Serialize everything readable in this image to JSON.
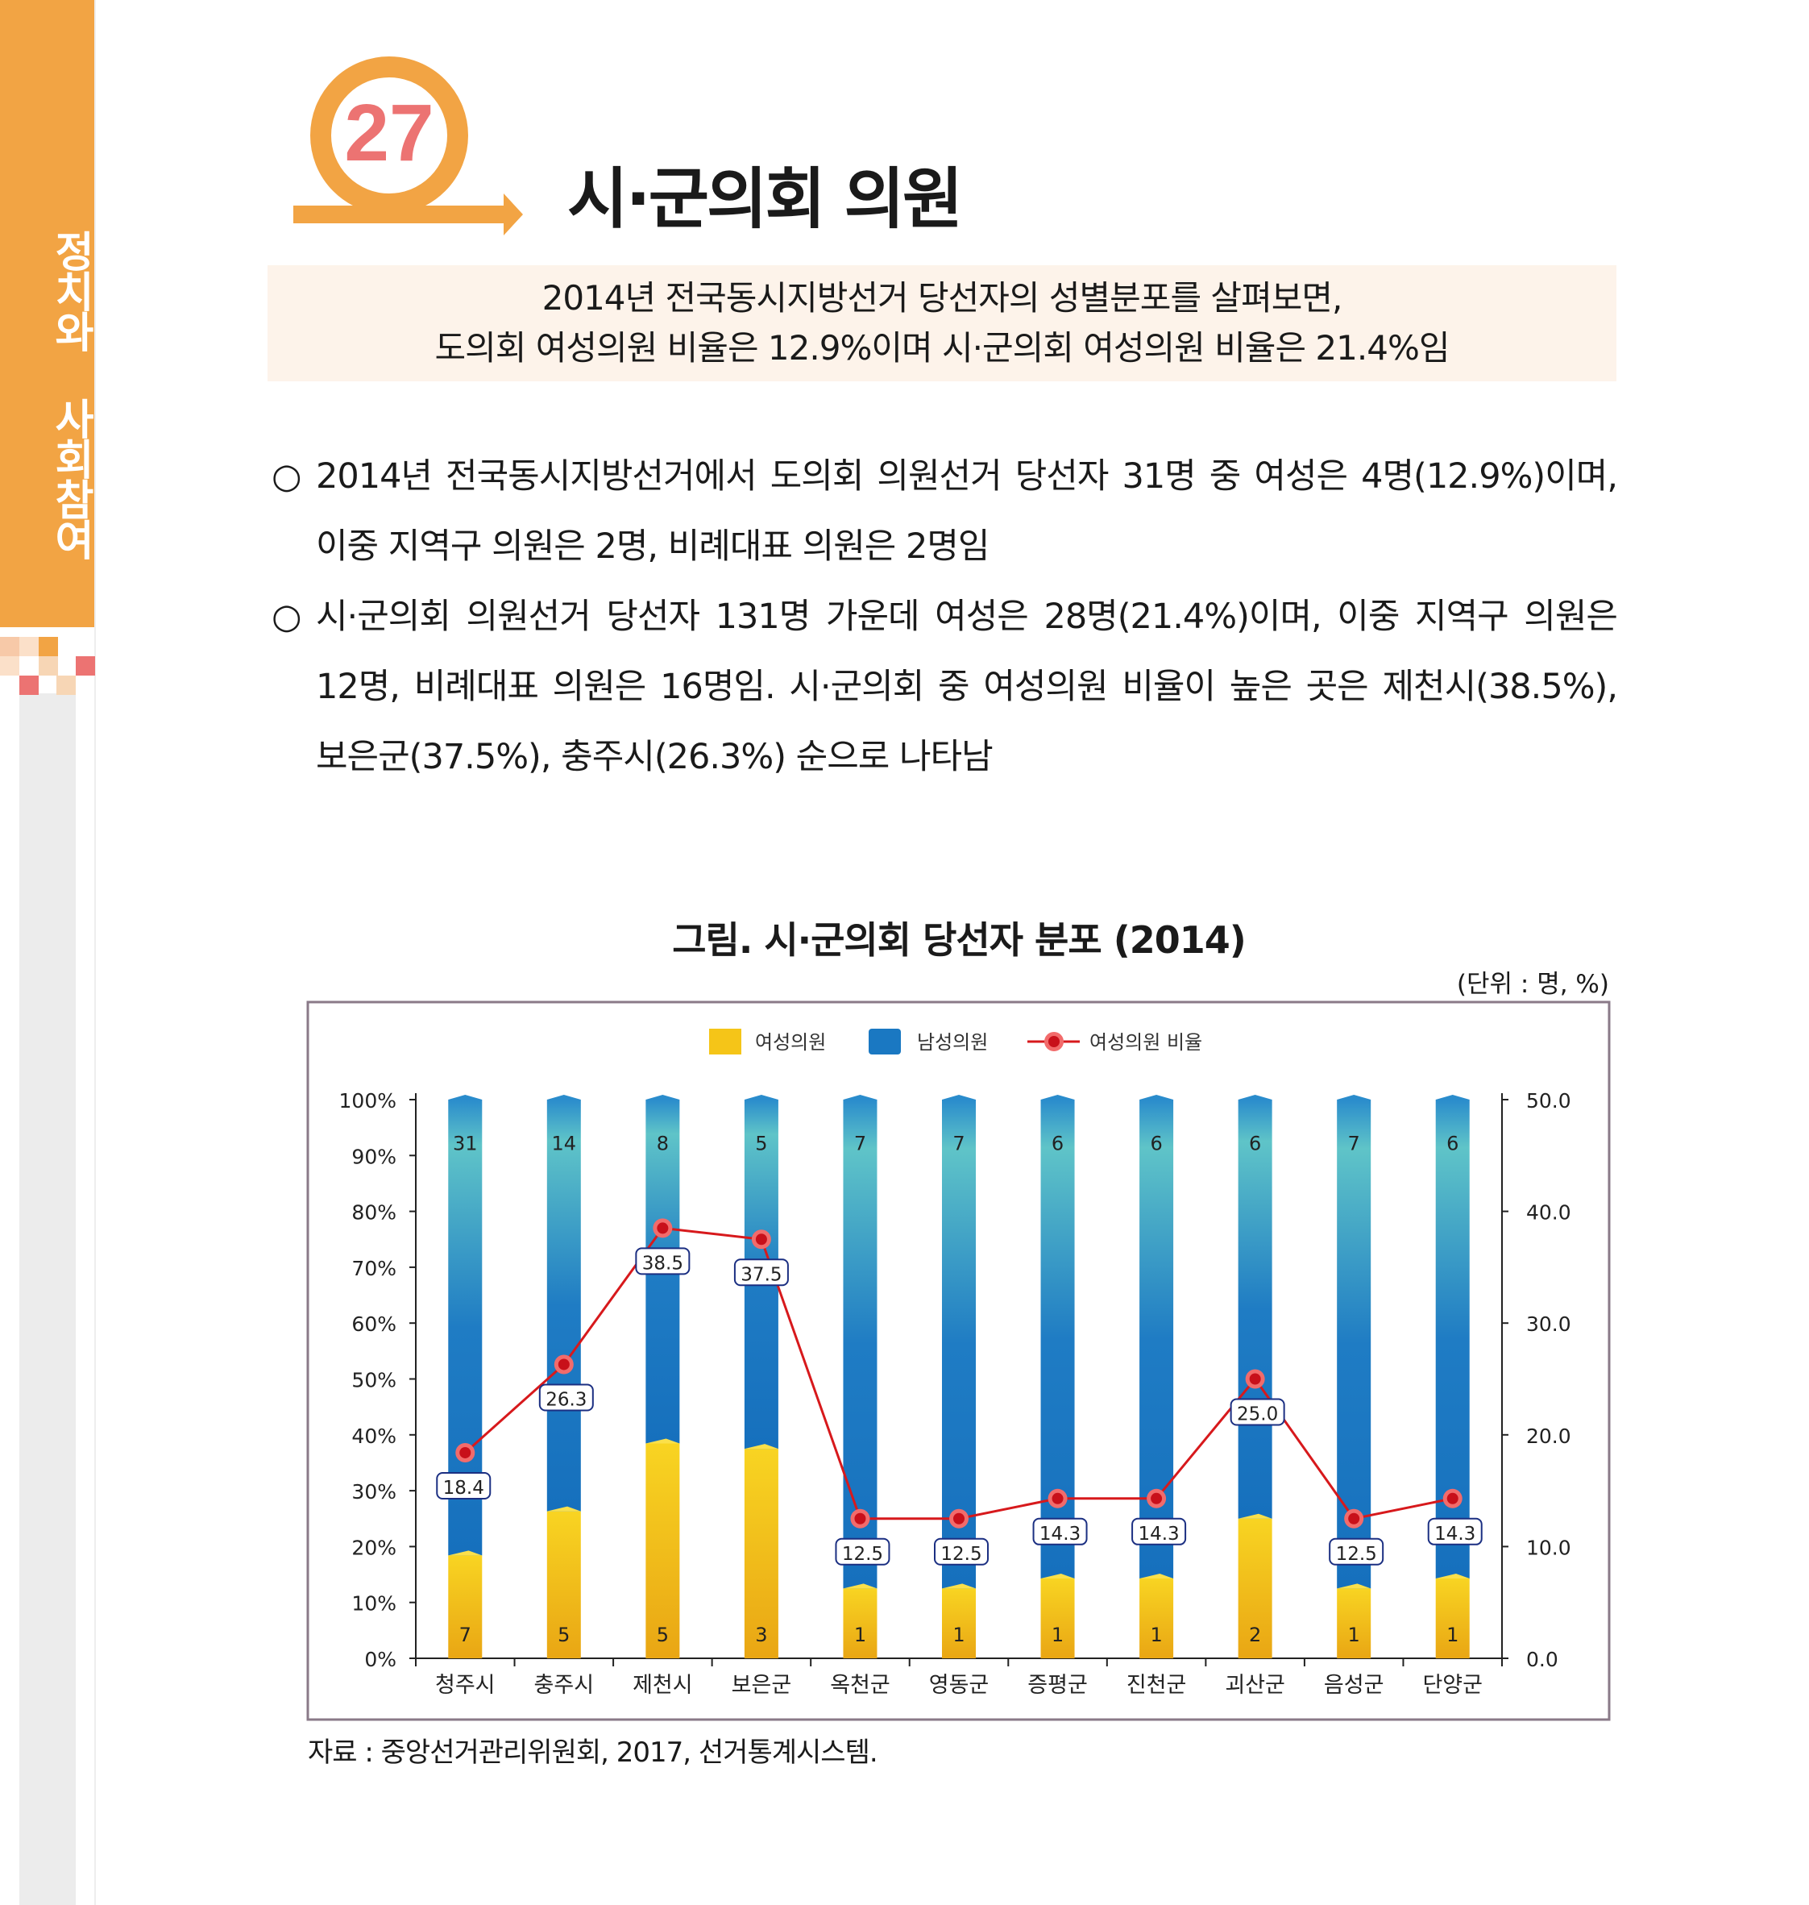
{
  "sidebar": {
    "section_label": "정치와 사회참여"
  },
  "header": {
    "number": "27",
    "title": "시·군의회 의원"
  },
  "summary": {
    "line1": "2014년 전국동시지방선거 당선자의 성별분포를 살펴보면,",
    "line2": "도의회 여성의원 비율은 12.9%이며 시·군의회 여성의원 비율은 21.4%임"
  },
  "bullets": [
    {
      "marker": "○",
      "lines": [
        "2014년 전국동시지방선거에서 도의회 의원선거 당선자 31명 중 여성은 4명(12.9%)이며,",
        "이중 지역구 의원은 2명, 비례대표 의원은 2명임"
      ]
    },
    {
      "marker": "○",
      "lines": [
        "시·군의회 의원선거 당선자 131명 가운데 여성은 28명(21.4%)이며, 이중 지역구 의원은",
        "12명, 비례대표 의원은 16명임. 시·군의회 중 여성의원 비율이 높은 곳은 제천시(38.5%),",
        "보은군(37.5%), 충주시(26.3%) 순으로 나타남"
      ]
    }
  ],
  "figure": {
    "title": "그림. 시·군의회 당선자 분포 (2014)",
    "unit": "(단위 : 명, %)",
    "source": "자료 : 중앙선거관리위원회, 2017, 선거통계시스템."
  },
  "chart_data": {
    "type": "bar",
    "stacked": "percent",
    "categories": [
      "청주시",
      "충주시",
      "제천시",
      "보은군",
      "옥천군",
      "영동군",
      "증평군",
      "진천군",
      "괴산군",
      "음성군",
      "단양군"
    ],
    "series": [
      {
        "name": "여성의원",
        "type": "bar",
        "axis": "left",
        "values": [
          7,
          5,
          5,
          3,
          1,
          1,
          1,
          1,
          2,
          1,
          1
        ],
        "color": "#f5c518"
      },
      {
        "name": "남성의원",
        "type": "bar",
        "axis": "left",
        "values": [
          31,
          14,
          8,
          5,
          7,
          7,
          6,
          6,
          6,
          7,
          6
        ],
        "color": "#1a78c2"
      },
      {
        "name": "여성의원 비율",
        "type": "line",
        "axis": "right",
        "values": [
          18.4,
          26.3,
          38.5,
          37.5,
          12.5,
          12.5,
          14.3,
          14.3,
          25.0,
          12.5,
          14.3
        ],
        "color": "#d7191c"
      }
    ],
    "y_left": {
      "range": [
        0,
        100
      ],
      "ticks": [
        "0%",
        "10%",
        "20%",
        "30%",
        "40%",
        "50%",
        "60%",
        "70%",
        "80%",
        "90%",
        "100%"
      ]
    },
    "y_right": {
      "range": [
        0,
        50
      ],
      "ticks": [
        "0.0",
        "10.0",
        "20.0",
        "30.0",
        "40.0",
        "50.0"
      ]
    },
    "legend": "top-center",
    "grid": false
  }
}
